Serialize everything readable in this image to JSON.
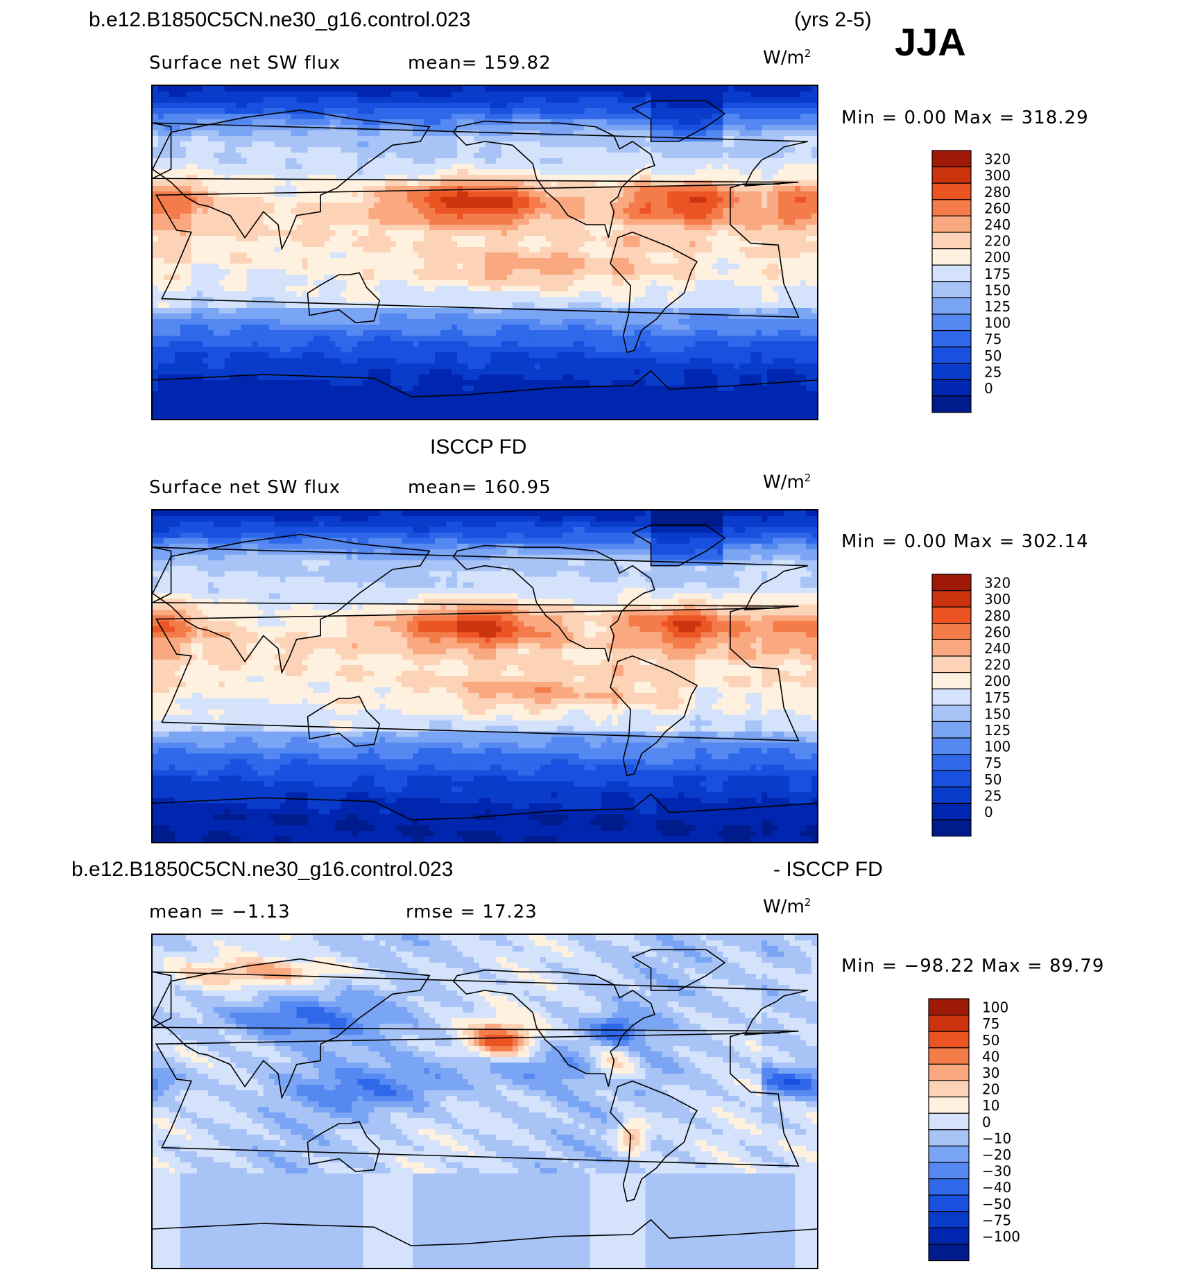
{
  "header": {
    "case_name": "b.e12.B1850C5CN.ne30_g16.control.023",
    "years": "(yrs 2-5)",
    "season": "JJA"
  },
  "panels": [
    {
      "id": "model",
      "title": "",
      "variable": "Surface net SW flux",
      "stat_left": "mean=  159.82",
      "stat_right": "",
      "units_base": "W/m",
      "units_exp": "2",
      "minmax": "Min =     0.00 Max = 318.29",
      "colorbar_labels": [
        "320",
        "300",
        "280",
        "260",
        "240",
        "220",
        "200",
        "175",
        "150",
        "125",
        "100",
        "75",
        "50",
        "25",
        "0"
      ]
    },
    {
      "id": "obs",
      "title": "ISCCP FD",
      "variable": "Surface net SW flux",
      "stat_left": "mean=  160.95",
      "stat_right": "",
      "units_base": "W/m",
      "units_exp": "2",
      "minmax": "Min =     0.00 Max = 302.14",
      "colorbar_labels": [
        "320",
        "300",
        "280",
        "260",
        "240",
        "220",
        "200",
        "175",
        "150",
        "125",
        "100",
        "75",
        "50",
        "25",
        "0"
      ]
    },
    {
      "id": "diff",
      "title_left": "b.e12.B1850C5CN.ne30_g16.control.023",
      "title_right": "- ISCCP FD",
      "variable": "",
      "stat_left": "mean =  −1.13",
      "stat_right": "rmse =  17.23",
      "units_base": "W/m",
      "units_exp": "2",
      "minmax": "Min = −98.22 Max =  89.79",
      "colorbar_labels": [
        "100",
        "75",
        "50",
        "40",
        "30",
        "20",
        "10",
        "0",
        "−10",
        "−20",
        "−30",
        "−40",
        "−50",
        "−75",
        "−100"
      ]
    }
  ],
  "chart_data": [
    {
      "type": "heatmap",
      "title": "Surface net SW flux",
      "mean": 159.82,
      "min": 0.0,
      "max": 318.29,
      "units": "W/m2",
      "levels": [
        0,
        25,
        50,
        75,
        100,
        125,
        150,
        175,
        200,
        220,
        240,
        260,
        280,
        300,
        320
      ],
      "colors": [
        "#001c8c",
        "#0026b0",
        "#0a3ccc",
        "#1a50e0",
        "#2f69ea",
        "#5588f0",
        "#7aa4f4",
        "#a8c4f7",
        "#d4e3fb",
        "#fff1e0",
        "#fcd3b6",
        "#f9a880",
        "#f47c4a",
        "#ec5424",
        "#cc3410",
        "#a01a08"
      ]
    },
    {
      "type": "heatmap",
      "title": "Surface net SW flux",
      "mean": 160.95,
      "min": 0.0,
      "max": 302.14,
      "units": "W/m2",
      "levels": [
        0,
        25,
        50,
        75,
        100,
        125,
        150,
        175,
        200,
        220,
        240,
        260,
        280,
        300,
        320
      ],
      "colors": [
        "#001c8c",
        "#0026b0",
        "#0a3ccc",
        "#1a50e0",
        "#2f69ea",
        "#5588f0",
        "#7aa4f4",
        "#a8c4f7",
        "#d4e3fb",
        "#fff1e0",
        "#fcd3b6",
        "#f9a880",
        "#f47c4a",
        "#ec5424",
        "#cc3410",
        "#a01a08"
      ]
    },
    {
      "type": "heatmap",
      "title": "",
      "mean": -1.13,
      "rmse": 17.23,
      "min": -98.22,
      "max": 89.79,
      "units": "W/m2",
      "levels": [
        -100,
        -75,
        -50,
        -40,
        -30,
        -20,
        -10,
        0,
        10,
        20,
        30,
        40,
        50,
        75,
        100
      ],
      "colors": [
        "#001c8c",
        "#0026b0",
        "#0a3ccc",
        "#1a50e0",
        "#2f69ea",
        "#5588f0",
        "#7aa4f4",
        "#a8c4f7",
        "#d4e3fb",
        "#fff1e0",
        "#fcd3b6",
        "#f9a880",
        "#f47c4a",
        "#ec5424",
        "#cc3410",
        "#a01a08"
      ]
    }
  ]
}
